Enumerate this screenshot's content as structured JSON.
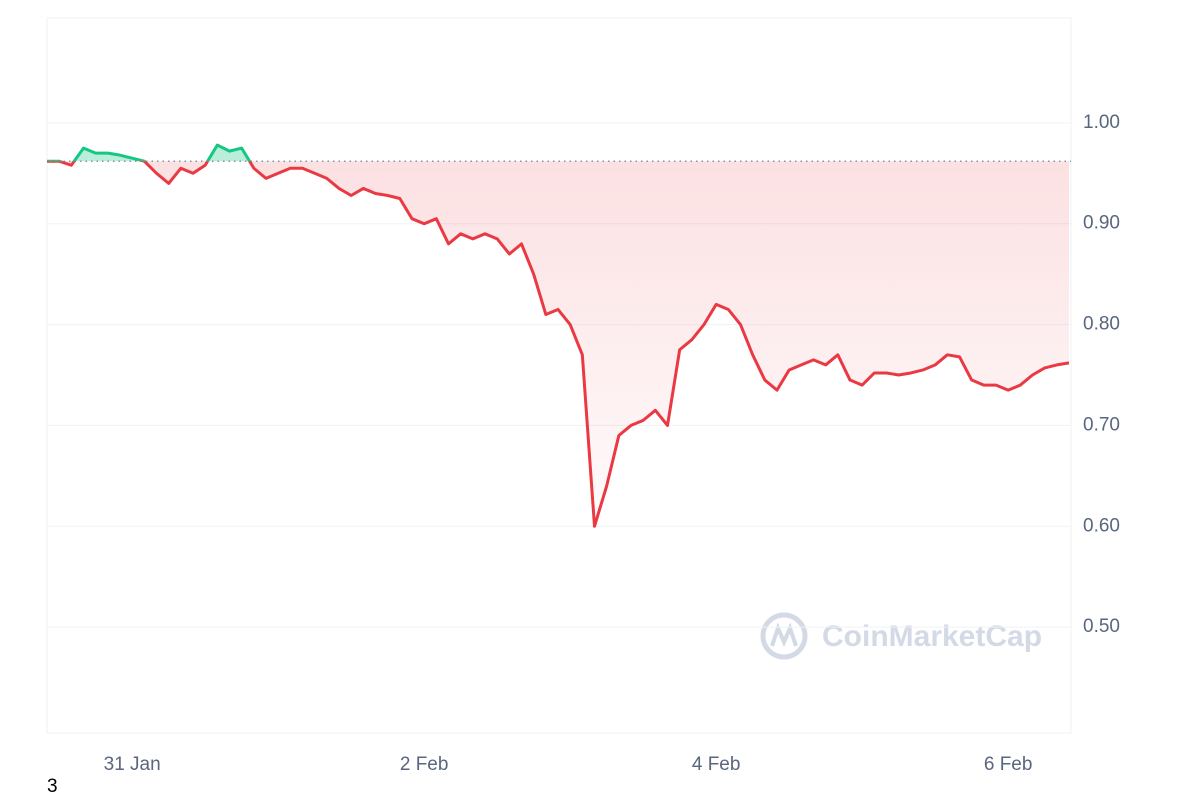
{
  "chart_data": {
    "type": "line",
    "categories": [
      null,
      null,
      null,
      null,
      null,
      null,
      null,
      "31 Jan",
      null,
      null,
      null,
      null,
      null,
      null,
      null,
      null,
      null,
      null,
      null,
      null,
      null,
      null,
      null,
      null,
      null,
      null,
      null,
      null,
      null,
      null,
      null,
      "2 Feb",
      null,
      null,
      null,
      null,
      null,
      null,
      null,
      null,
      null,
      null,
      null,
      null,
      null,
      null,
      null,
      null,
      null,
      null,
      null,
      null,
      null,
      null,
      null,
      "4 Feb",
      null,
      null,
      null,
      null,
      null,
      null,
      null,
      null,
      null,
      null,
      null,
      null,
      null,
      null,
      null,
      null,
      null,
      null,
      null,
      null,
      null,
      null,
      null,
      "6 Feb",
      null,
      null,
      null,
      null,
      null
    ],
    "values": [
      0.962,
      0.962,
      0.958,
      0.975,
      0.97,
      0.97,
      0.968,
      0.965,
      0.962,
      0.95,
      0.94,
      0.955,
      0.95,
      0.958,
      0.978,
      0.972,
      0.975,
      0.955,
      0.945,
      0.95,
      0.955,
      0.955,
      0.95,
      0.945,
      0.935,
      0.928,
      0.935,
      0.93,
      0.928,
      0.925,
      0.905,
      0.9,
      0.905,
      0.88,
      0.89,
      0.885,
      0.89,
      0.885,
      0.87,
      0.88,
      0.85,
      0.81,
      0.815,
      0.8,
      0.77,
      0.6,
      0.64,
      0.69,
      0.7,
      0.705,
      0.715,
      0.7,
      0.775,
      0.785,
      0.8,
      0.82,
      0.815,
      0.8,
      0.77,
      0.745,
      0.735,
      0.755,
      0.76,
      0.765,
      0.76,
      0.77,
      0.745,
      0.74,
      0.752,
      0.752,
      0.75,
      0.752,
      0.755,
      0.76,
      0.77,
      0.768,
      0.745,
      0.74,
      0.74,
      0.735,
      0.74,
      0.75,
      0.757,
      0.76,
      0.762
    ],
    "baseline": 0.962,
    "up_color": "#16c784",
    "down_color": "#ea3943",
    "ylim": [
      0.395,
      1.104
    ],
    "yticks": [
      {
        "value": 0.5,
        "label": "0.50"
      },
      {
        "value": 0.6,
        "label": "0.60"
      },
      {
        "value": 0.7,
        "label": "0.70"
      },
      {
        "value": 0.8,
        "label": "0.80"
      },
      {
        "value": 0.9,
        "label": "0.90"
      },
      {
        "value": 1.0,
        "label": "1.00"
      }
    ],
    "grid": true,
    "watermark": "CoinMarketCap",
    "footnote": "3"
  }
}
